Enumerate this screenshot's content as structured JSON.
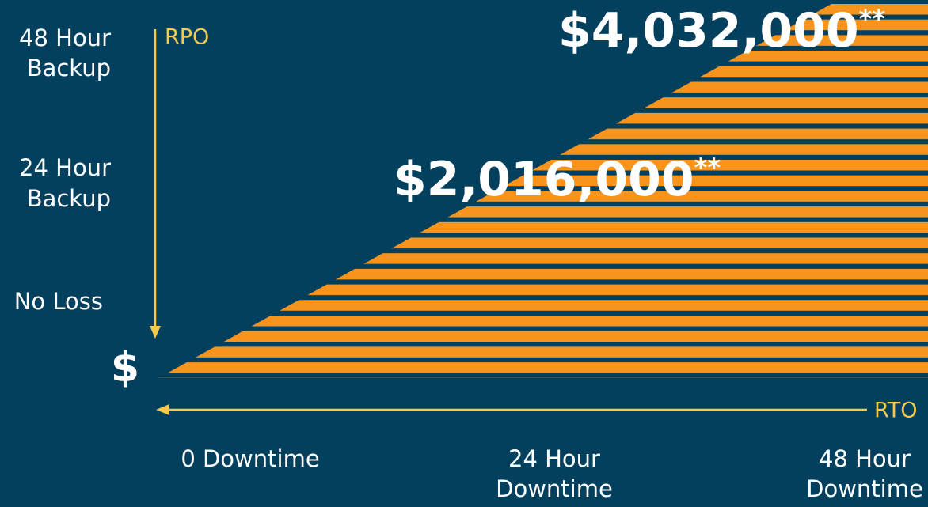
{
  "rpo_axis": {
    "label": "RPO",
    "levels": [
      [
        "48 Hour",
        "Backup"
      ],
      [
        "24 Hour",
        "Backup"
      ],
      [
        "No Loss"
      ]
    ]
  },
  "rto_axis": {
    "label": "RTO",
    "levels": [
      [
        "0 Downtime"
      ],
      [
        "24 Hour",
        "Downtime"
      ],
      [
        "48 Hour",
        "Downtime"
      ]
    ]
  },
  "origin_label": "$",
  "costs": [
    {
      "amount": "$2,016,000",
      "note": "**"
    },
    {
      "amount": "$4,032,000",
      "note": "**"
    }
  ]
}
